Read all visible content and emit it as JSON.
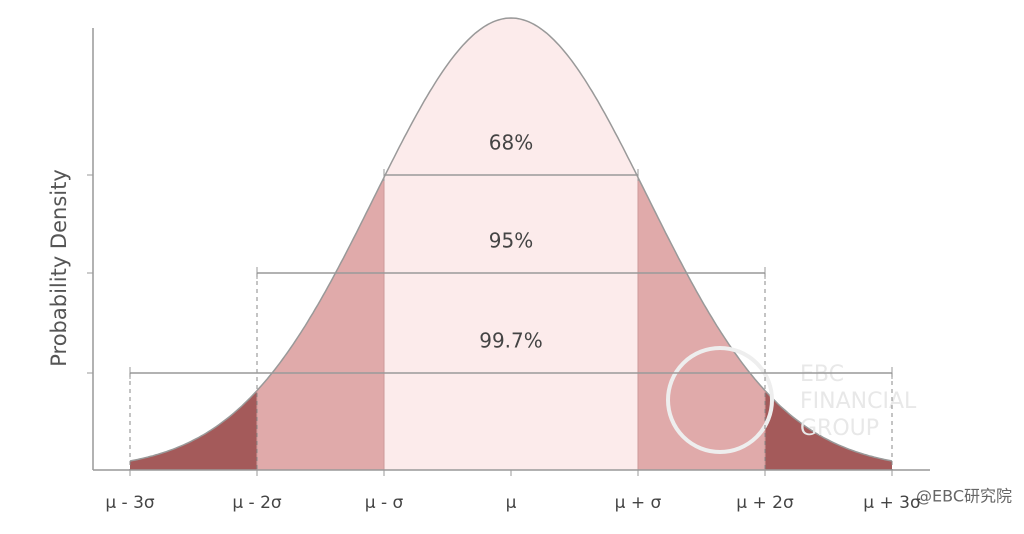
{
  "chart_data": {
    "type": "normal-distribution",
    "y_label": "Probability Density",
    "categories": [
      "μ - 3σ",
      "μ - 2σ",
      "μ - σ",
      "μ",
      "μ + σ",
      "μ + 2σ",
      "μ + 3σ"
    ],
    "intervals": [
      {
        "value": 68,
        "label": "68%"
      },
      {
        "value": 95,
        "label": "95%"
      },
      {
        "value": 99.7,
        "label": "99.7%"
      }
    ],
    "colors": [
      "#fcebeb",
      "#e0aaaa",
      "#a45a5a"
    ],
    "watermark": [
      "EBC",
      "FINANCIAL",
      "GROUP"
    ],
    "credit": "@EBC研究院"
  }
}
